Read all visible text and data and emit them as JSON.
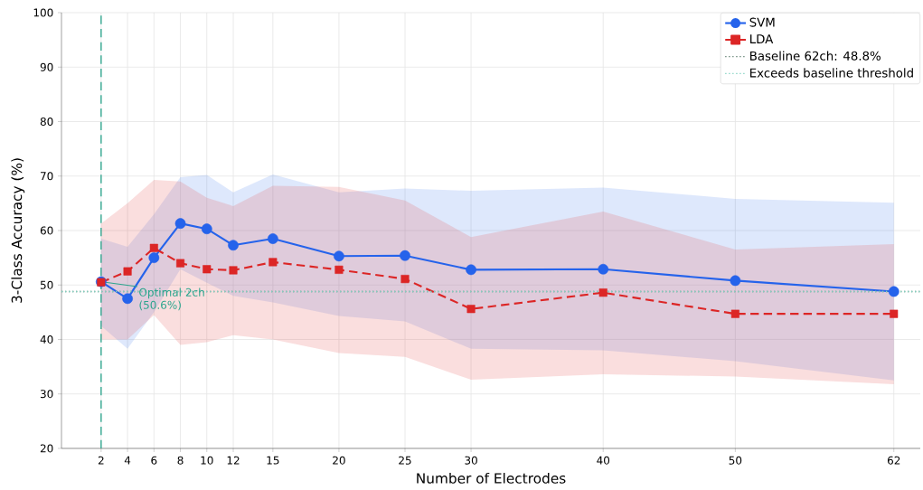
{
  "chart_data": {
    "type": "line",
    "xlabel": "Number of Electrodes",
    "ylabel": "3-Class Accuracy (%)",
    "x": [
      2,
      4,
      6,
      8,
      10,
      12,
      15,
      20,
      25,
      30,
      40,
      50,
      62
    ],
    "series": [
      {
        "name": "SVM",
        "color": "#2563eb",
        "marker": "circle",
        "line_style": "solid",
        "values": [
          50.6,
          47.5,
          55.0,
          61.3,
          60.3,
          57.3,
          58.5,
          55.3,
          55.4,
          52.8,
          52.9,
          50.8,
          48.8
        ],
        "lower": [
          42.5,
          38.3,
          45.0,
          52.9,
          50.4,
          48.0,
          46.8,
          44.3,
          43.3,
          38.3,
          38.0,
          36.0,
          32.5
        ],
        "upper": [
          58.5,
          57.0,
          63.0,
          69.8,
          70.2,
          67.0,
          70.3,
          67.0,
          67.7,
          67.3,
          67.9,
          65.8,
          65.1
        ]
      },
      {
        "name": "LDA",
        "color": "#dc2626",
        "marker": "square",
        "line_style": "dashed",
        "values": [
          50.5,
          52.5,
          56.8,
          54.0,
          52.9,
          52.7,
          54.2,
          52.8,
          51.1,
          45.6,
          48.6,
          44.7,
          44.7
        ],
        "lower": [
          40.0,
          40.0,
          44.5,
          39.0,
          39.5,
          40.8,
          40.0,
          37.5,
          36.8,
          32.6,
          33.6,
          33.2,
          31.8
        ],
        "upper": [
          61.3,
          65.0,
          69.3,
          69.0,
          66.0,
          64.5,
          68.2,
          68.0,
          65.5,
          58.8,
          63.5,
          56.5,
          57.5
        ]
      }
    ],
    "ref_lines": [
      {
        "axis": "y",
        "value": 48.8,
        "label": "Baseline 62ch: 48.8%",
        "color": "#5f7f70",
        "line_style": "dotted"
      },
      {
        "axis": "y",
        "value": 48.8,
        "label": "Exceeds baseline threshold",
        "color": "#7fd1c0",
        "line_style": "dotted"
      },
      {
        "axis": "x",
        "value": 2,
        "color": "#2ca58d",
        "line_style": "dashed"
      }
    ],
    "annotations": [
      {
        "text": "Optimal 2ch (50.6%)",
        "x": 2,
        "y": 50.6
      }
    ],
    "xlim": [
      -1,
      64
    ],
    "ylim": [
      20,
      100
    ],
    "xticks": [
      2,
      4,
      6,
      8,
      10,
      12,
      15,
      20,
      25,
      30,
      40,
      50,
      62
    ],
    "yticks": [
      20,
      30,
      40,
      50,
      60,
      70,
      80,
      90,
      100
    ],
    "grid": true,
    "legend": "top right"
  }
}
